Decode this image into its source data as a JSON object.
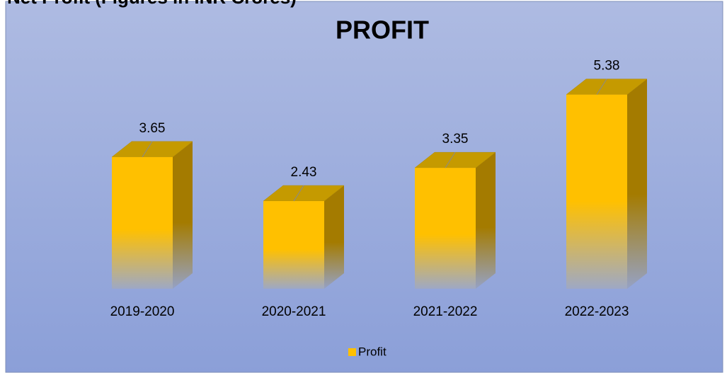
{
  "page_heading": "Net Profit (Figures in INR Crores)",
  "chart_data": {
    "type": "bar3d",
    "title": "PROFIT",
    "categories": [
      "2019-2020",
      "2020-2021",
      "2021-2022",
      "2022-2023"
    ],
    "series": [
      {
        "name": "Profit",
        "color": "#ffc000",
        "values": [
          3.65,
          2.43,
          3.35,
          5.38
        ]
      }
    ],
    "ylim": [
      0,
      6
    ],
    "legend": "bottom"
  }
}
